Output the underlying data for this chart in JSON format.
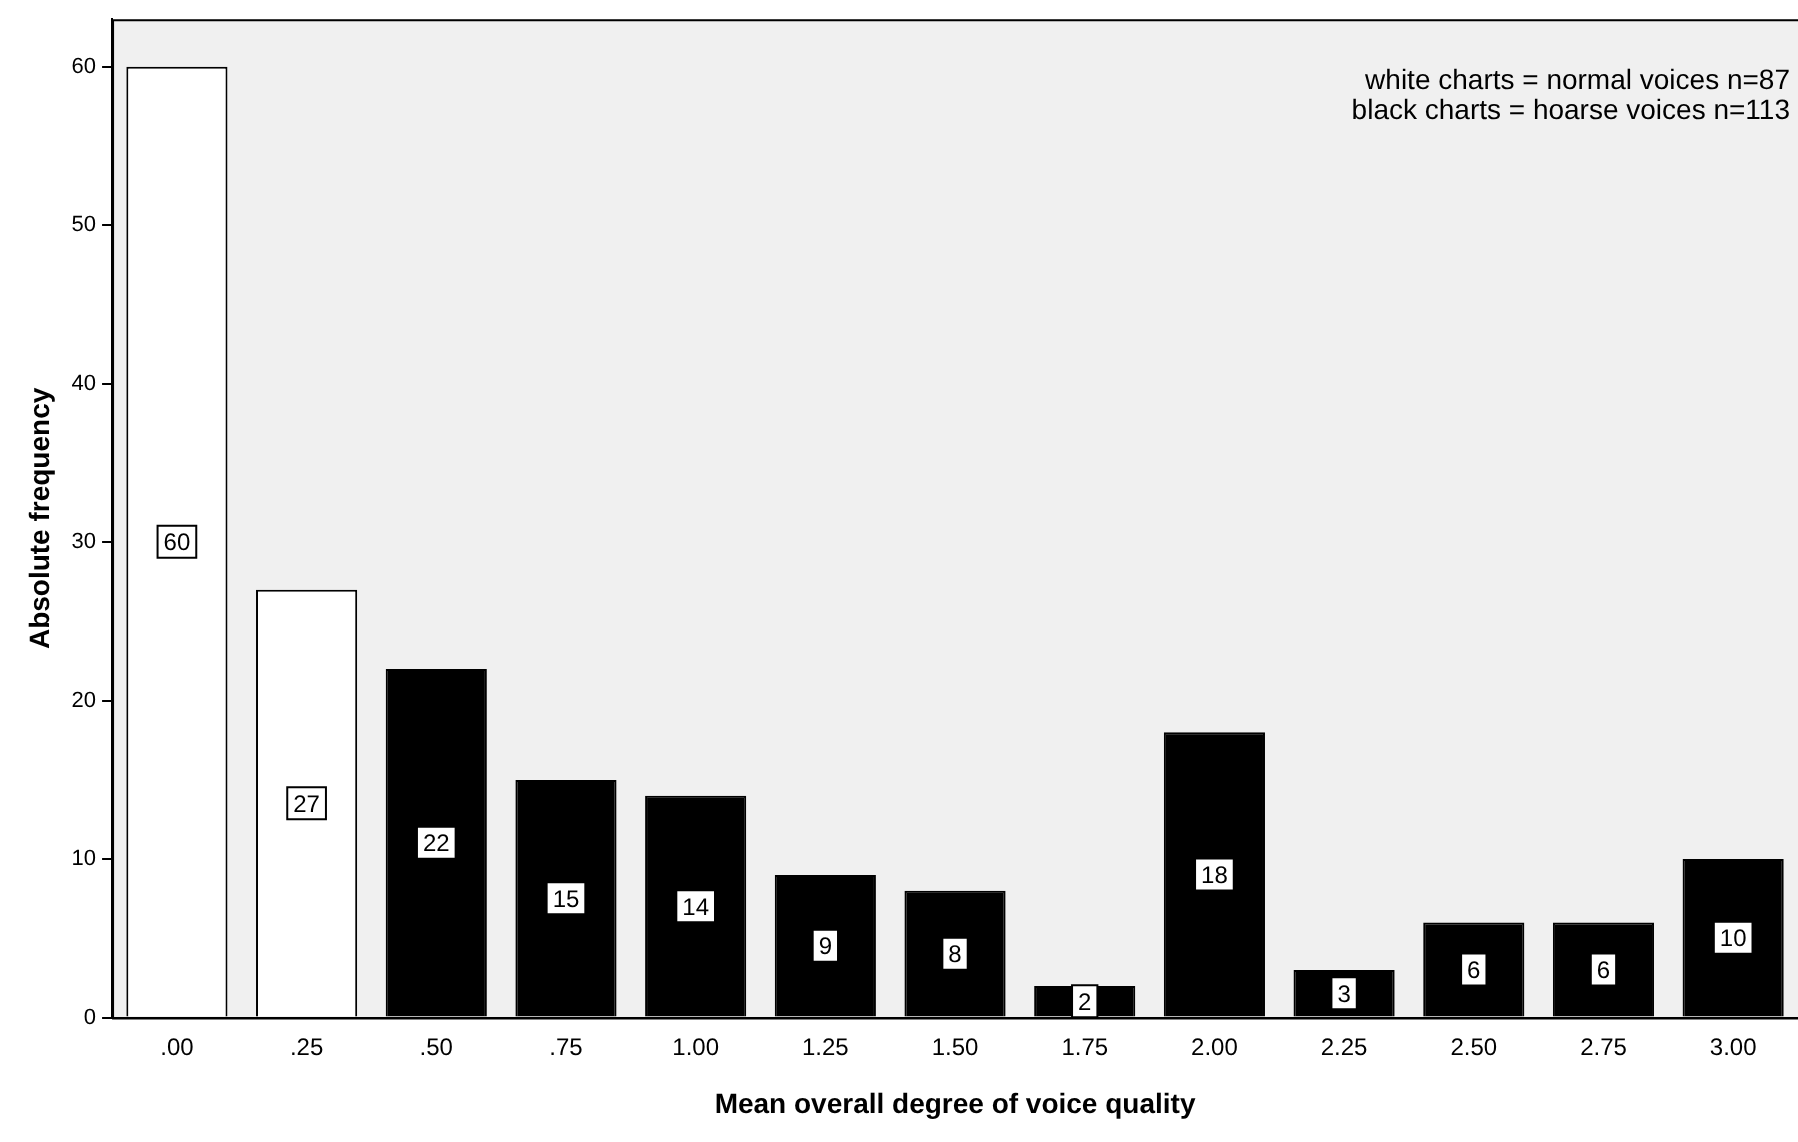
{
  "chart_data": {
    "type": "bar",
    "xlabel": "Mean overall degree of voice quality",
    "ylabel": "Absolute frequency",
    "categories": [
      ".00",
      ".25",
      ".50",
      ".75",
      "1.00",
      "1.25",
      "1.50",
      "1.75",
      "2.00",
      "2.25",
      "2.50",
      "2.75",
      "3.00"
    ],
    "values": [
      60,
      27,
      22,
      15,
      14,
      9,
      8,
      2,
      18,
      3,
      6,
      6,
      10
    ],
    "colors": [
      "#ffffff",
      "#ffffff",
      "#000000",
      "#000000",
      "#000000",
      "#000000",
      "#000000",
      "#000000",
      "#000000",
      "#000000",
      "#000000",
      "#000000",
      "#000000"
    ],
    "ylim": [
      0,
      63
    ],
    "yticks": [
      0,
      10,
      20,
      30,
      40,
      50,
      60
    ],
    "data_labels": true,
    "grid": false,
    "legend": false,
    "annotations": [
      "white charts = normal voices n=87",
      "black charts = hoarse voices n=113"
    ]
  }
}
